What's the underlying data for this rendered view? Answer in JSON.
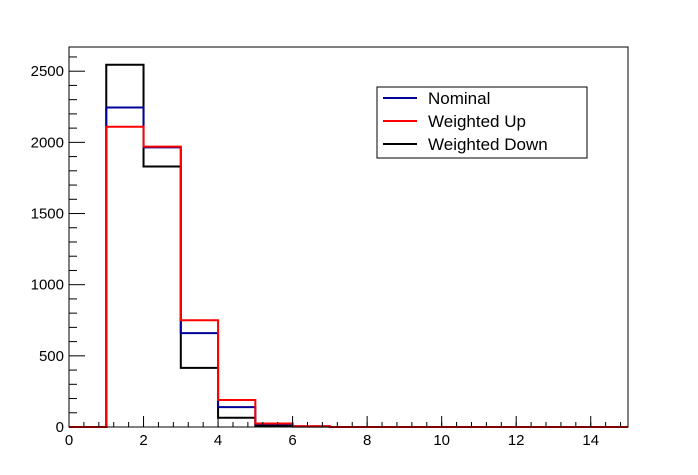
{
  "chart_data": {
    "type": "histogram",
    "title": "",
    "xlabel": "",
    "ylabel": "",
    "xlim": [
      0,
      15
    ],
    "ylim": [
      0,
      2670
    ],
    "bin_width": 1,
    "x_ticks": [
      0,
      2,
      4,
      6,
      8,
      10,
      12,
      14
    ],
    "y_ticks": [
      0,
      500,
      1000,
      1500,
      2000,
      2500
    ],
    "grid": false,
    "legend_position": "top-right",
    "bin_edges": [
      0,
      1,
      2,
      3,
      4,
      5,
      6,
      7,
      8,
      9,
      10,
      11,
      12,
      13,
      14,
      15
    ],
    "series": [
      {
        "name": "Nominal",
        "color": "#000099",
        "values": [
          0,
          2245,
          1965,
          660,
          140,
          20,
          5,
          0,
          0,
          0,
          0,
          0,
          0,
          0,
          0
        ]
      },
      {
        "name": "Weighted Up",
        "color": "#ff0000",
        "values": [
          0,
          2110,
          1970,
          750,
          190,
          25,
          5,
          0,
          0,
          0,
          0,
          0,
          0,
          0,
          0
        ]
      },
      {
        "name": "Weighted Down",
        "color": "#000000",
        "values": [
          0,
          2545,
          1830,
          415,
          65,
          10,
          3,
          0,
          0,
          0,
          0,
          0,
          0,
          0,
          0
        ]
      }
    ]
  }
}
